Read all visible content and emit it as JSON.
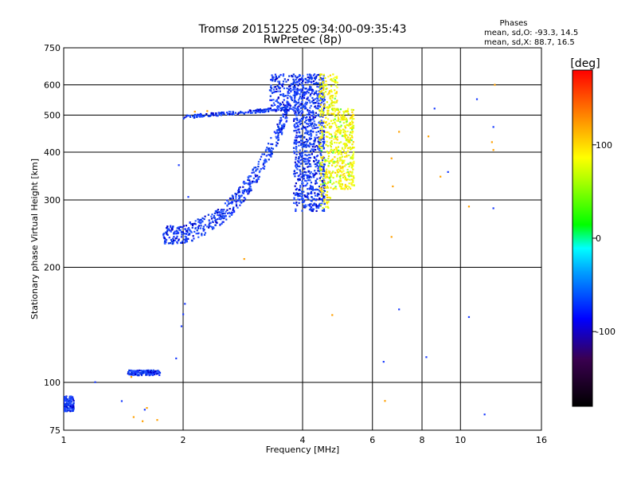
{
  "chart_data": {
    "type": "scatter",
    "title": "Tromsø 20151225 09:34:00-09:35:43",
    "subtitle": "RwPretec (8p)",
    "xlabel": "Frequency [MHz]",
    "ylabel": "Stationary phase Virtual Height [km]",
    "x_scale": "log",
    "y_scale": "log",
    "xlim": [
      1,
      16
    ],
    "ylim": [
      75,
      750
    ],
    "x_ticks": [
      1,
      2,
      4,
      6,
      8,
      10,
      16
    ],
    "y_ticks": [
      75,
      100,
      200,
      300,
      400,
      500,
      600,
      750
    ],
    "grid": true,
    "stats": {
      "heading": "Phases",
      "line1": "mean, sd,O: -93.3, 14.5",
      "line2": "mean, sd,X: 88.7, 16.5"
    },
    "colorbar": {
      "label": "[deg]",
      "range": [
        -180,
        180
      ],
      "ticks": [
        100,
        0,
        -100
      ],
      "tick_labels": [
        "100",
        "0",
        "-100"
      ]
    },
    "series": [
      {
        "mode": "O",
        "phase_mean": -93.3,
        "phase_sd": 14.5,
        "trace_segments": [
          {
            "segment": "E-layer",
            "x_range": [
              1.45,
              1.75
            ],
            "height": 106
          },
          {
            "segment": "F1 trace",
            "x_range": [
              1.78,
              3.75
            ],
            "height_range": [
              238,
              530
            ]
          },
          {
            "segment": "F2 trace",
            "x_range": [
              2.0,
              3.65
            ],
            "height_range": [
              495,
              520
            ]
          },
          {
            "segment": "near-vertical spread",
            "x_range": [
              3.8,
              4.55
            ],
            "height_range": [
              280,
              640
            ]
          },
          {
            "segment": "upper F layer",
            "x_range": [
              3.3,
              3.85
            ],
            "height_range": [
              510,
              640
            ]
          },
          {
            "segment": "low-frequency echoes",
            "x_range": [
              1.0,
              1.06
            ],
            "height_range": [
              84,
              92
            ]
          }
        ],
        "points": [
          [
            1.05,
            84.8
          ],
          [
            1.2,
            100.2
          ],
          [
            1.4,
            89.4
          ],
          [
            1.6,
            84.9
          ],
          [
            1.92,
            115.6
          ],
          [
            2.0,
            150.8
          ],
          [
            2.02,
            160.6
          ],
          [
            1.98,
            140.3
          ],
          [
            1.95,
            370.2
          ],
          [
            2.06,
            305.7
          ],
          [
            6.4,
            113.3
          ],
          [
            7.0,
            155.3
          ],
          [
            8.2,
            116.5
          ],
          [
            8.6,
            520.4
          ],
          [
            9.3,
            355.2
          ],
          [
            11.0,
            550.6
          ],
          [
            12.1,
            465.8
          ],
          [
            12.1,
            285.5
          ],
          [
            11.5,
            82.5
          ],
          [
            10.5,
            148.3
          ]
        ]
      },
      {
        "mode": "X",
        "phase_mean": 88.7,
        "phase_sd": 16.5,
        "trace_segments": [
          {
            "segment": "X-mode spread",
            "x_range": [
              4.4,
              5.4
            ],
            "height_range": [
              285,
              640
            ]
          }
        ],
        "points": [
          [
            1.5,
            81.2
          ],
          [
            1.58,
            79.2
          ],
          [
            1.72,
            79.8
          ],
          [
            1.62,
            85.8
          ],
          [
            1.48,
            103.4
          ],
          [
            2.14,
            510.8
          ],
          [
            2.3,
            512.6
          ],
          [
            2.85,
            210.4
          ],
          [
            4.75,
            150.1
          ],
          [
            6.45,
            89.5
          ],
          [
            6.7,
            385.6
          ],
          [
            6.7,
            240.3
          ],
          [
            6.75,
            325.7
          ],
          [
            7.0,
            452.5
          ],
          [
            8.3,
            440.1
          ],
          [
            8.9,
            345.4
          ],
          [
            10.5,
            288.5
          ],
          [
            12.0,
            425.2
          ],
          [
            12.1,
            405.6
          ],
          [
            12.2,
            600.4
          ]
        ]
      }
    ]
  }
}
